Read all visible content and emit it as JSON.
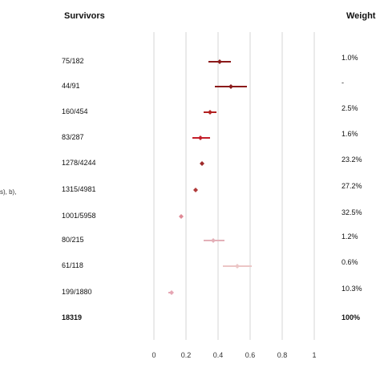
{
  "headers": {
    "survivors": "Survivors",
    "weight": "Weight"
  },
  "clipped_label": "s), b),",
  "chart_data": {
    "type": "forest",
    "title": "",
    "xlabel": "",
    "ylabel": "",
    "xlim": [
      0,
      1
    ],
    "x_ticks": [
      "0",
      "0.2",
      "0.4",
      "0.6",
      "0.8",
      "1"
    ],
    "grid": true,
    "rows": [
      {
        "survivors": "75/182",
        "weight": "1.0%",
        "estimate": 0.41,
        "ci": [
          0.34,
          0.48
        ],
        "color": "#8b1a1a"
      },
      {
        "survivors": "44/91",
        "weight": "-",
        "estimate": 0.48,
        "ci": [
          0.38,
          0.58
        ],
        "color": "#8b1a1a"
      },
      {
        "survivors": "160/454",
        "weight": "2.5%",
        "estimate": 0.35,
        "ci": [
          0.31,
          0.39
        ],
        "color": "#b22222"
      },
      {
        "survivors": "83/287",
        "weight": "1.6%",
        "estimate": 0.29,
        "ci": [
          0.24,
          0.35
        ],
        "color": "#c41e2a"
      },
      {
        "survivors": "1278/4244",
        "weight": "23.2%",
        "estimate": 0.3,
        "ci": [
          0.29,
          0.31
        ],
        "color": "#9e2a2a"
      },
      {
        "survivors": "1315/4981",
        "weight": "27.2%",
        "estimate": 0.26,
        "ci": [
          0.25,
          0.27
        ],
        "color": "#b03a3a"
      },
      {
        "survivors": "1001/5958",
        "weight": "32.5%",
        "estimate": 0.17,
        "ci": [
          0.16,
          0.18
        ],
        "color": "#e08a96"
      },
      {
        "survivors": "80/215",
        "weight": "1.2%",
        "estimate": 0.37,
        "ci": [
          0.31,
          0.44
        ],
        "color": "#e3b0b8"
      },
      {
        "survivors": "61/118",
        "weight": "0.6%",
        "estimate": 0.52,
        "ci": [
          0.43,
          0.61
        ],
        "color": "#ecc6c6"
      },
      {
        "survivors": "199/1880",
        "weight": "10.3%",
        "estimate": 0.11,
        "ci": [
          0.09,
          0.12
        ],
        "color": "#e6a6b4"
      }
    ],
    "total": {
      "survivors": "18319",
      "weight": "100%"
    }
  }
}
